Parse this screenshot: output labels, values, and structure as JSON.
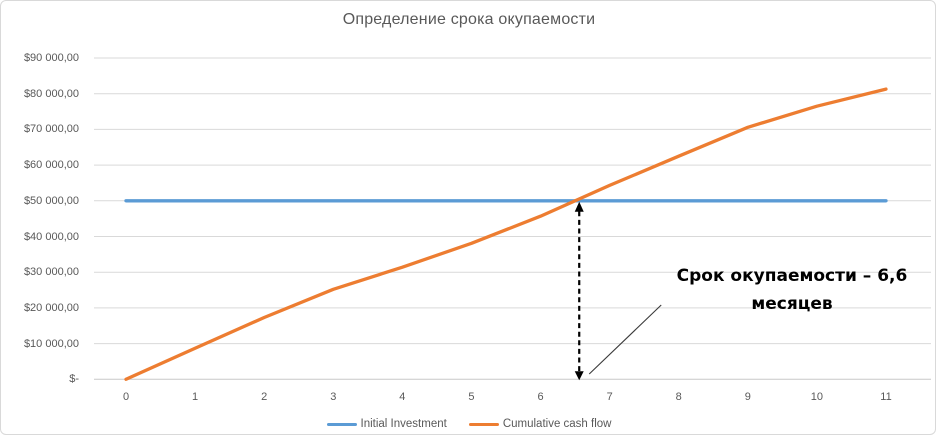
{
  "chart_data": {
    "type": "line",
    "title": "Определение срока окупаемости",
    "x": [
      0,
      1,
      2,
      3,
      4,
      5,
      6,
      7,
      8,
      9,
      10,
      11
    ],
    "x_ticks": [
      "0",
      "1",
      "2",
      "3",
      "4",
      "5",
      "6",
      "7",
      "8",
      "9",
      "10",
      "11"
    ],
    "series": [
      {
        "name": "Initial Investment",
        "color": "#5B9BD5",
        "values": [
          50000,
          50000,
          50000,
          50000,
          50000,
          50000,
          50000,
          50000,
          50000,
          50000,
          50000,
          50000
        ]
      },
      {
        "name": "Cumulative cash flow",
        "color": "#ED7D31",
        "values": [
          0,
          8700,
          17300,
          25200,
          31400,
          38100,
          45700,
          54300,
          62500,
          70600,
          76500,
          81300
        ]
      }
    ],
    "y_ticks": [
      {
        "label": "$90 000,00",
        "value": 90000
      },
      {
        "label": "$80 000,00",
        "value": 80000
      },
      {
        "label": "$70 000,00",
        "value": 70000
      },
      {
        "label": "$60 000,00",
        "value": 60000
      },
      {
        "label": "$50 000,00",
        "value": 50000
      },
      {
        "label": "$40 000,00",
        "value": 40000
      },
      {
        "label": "$30 000,00",
        "value": 30000
      },
      {
        "label": "$20 000,00",
        "value": 20000
      },
      {
        "label": "$10 000,00",
        "value": 10000
      },
      {
        "label": "$-",
        "value": 0
      }
    ],
    "ylim": [
      0,
      90000
    ],
    "xlabel": "",
    "ylabel": "",
    "grid": true,
    "legend_position": "bottom",
    "annotation": {
      "text": "Срок окупаемости – 6,6 месяцев",
      "payback_months": "6,6",
      "arrow_x": 6.56,
      "arrow_from_value": 0,
      "arrow_to_value": 50000
    },
    "colors": {
      "gridline": "#D9D9D9",
      "axis_line": "#C8C8C8",
      "text": "#595959",
      "annotation_text": "#000000"
    }
  }
}
